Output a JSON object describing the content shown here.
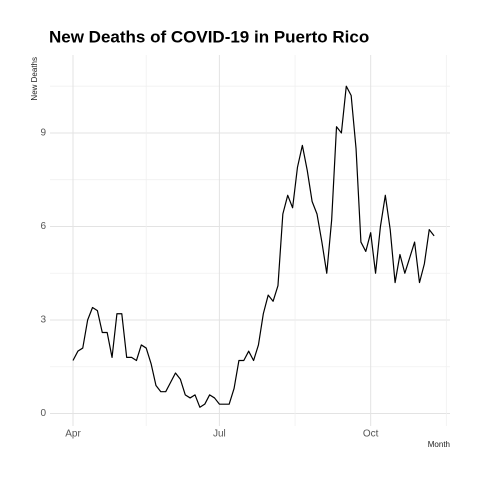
{
  "chart_data": {
    "type": "line",
    "title": "New Deaths of COVID-19 in Puerto Rico",
    "x_label": "Month",
    "y_label": "New Deaths",
    "categories": [
      "Apr",
      null,
      null,
      null,
      null,
      null,
      null,
      null,
      null,
      null,
      null,
      null,
      null,
      null,
      null,
      null,
      null,
      null,
      null,
      null,
      null,
      null,
      null,
      null,
      null,
      null,
      null,
      null,
      null,
      null,
      "Jul",
      null,
      null,
      null,
      null,
      null,
      null,
      null,
      null,
      null,
      null,
      null,
      null,
      null,
      null,
      null,
      null,
      null,
      null,
      null,
      null,
      null,
      null,
      null,
      null,
      null,
      null,
      null,
      null,
      null,
      null,
      "Oct",
      null,
      null,
      null,
      null,
      null,
      null,
      null,
      null,
      null,
      null,
      null,
      null,
      null
    ],
    "series": [
      {
        "name": "New Deaths",
        "color": "#000000",
        "values": [
          1.7,
          2.0,
          2.1,
          3.0,
          3.4,
          3.3,
          2.6,
          2.6,
          1.8,
          3.2,
          3.2,
          1.8,
          1.8,
          1.7,
          2.2,
          2.1,
          1.6,
          0.9,
          0.7,
          0.7,
          1.0,
          1.3,
          1.1,
          0.6,
          0.5,
          0.6,
          0.2,
          0.3,
          0.6,
          0.5,
          0.3,
          0.3,
          0.3,
          0.8,
          1.7,
          1.7,
          2.0,
          1.7,
          2.2,
          3.2,
          3.8,
          3.6,
          4.1,
          6.4,
          7.0,
          6.6,
          7.9,
          8.6,
          7.8,
          6.8,
          6.4,
          5.5,
          4.5,
          6.2,
          9.2,
          9.0,
          10.5,
          10.2,
          8.5,
          5.5,
          5.2,
          5.8,
          4.5,
          6.0,
          7.0,
          5.9,
          4.2,
          5.1,
          4.5,
          5.0,
          5.5,
          4.2,
          4.8,
          5.9,
          5.7
        ]
      }
    ],
    "ylim": [
      -0.4,
      11.5
    ],
    "yticks": [
      0,
      3,
      6,
      9
    ],
    "grid": true
  }
}
